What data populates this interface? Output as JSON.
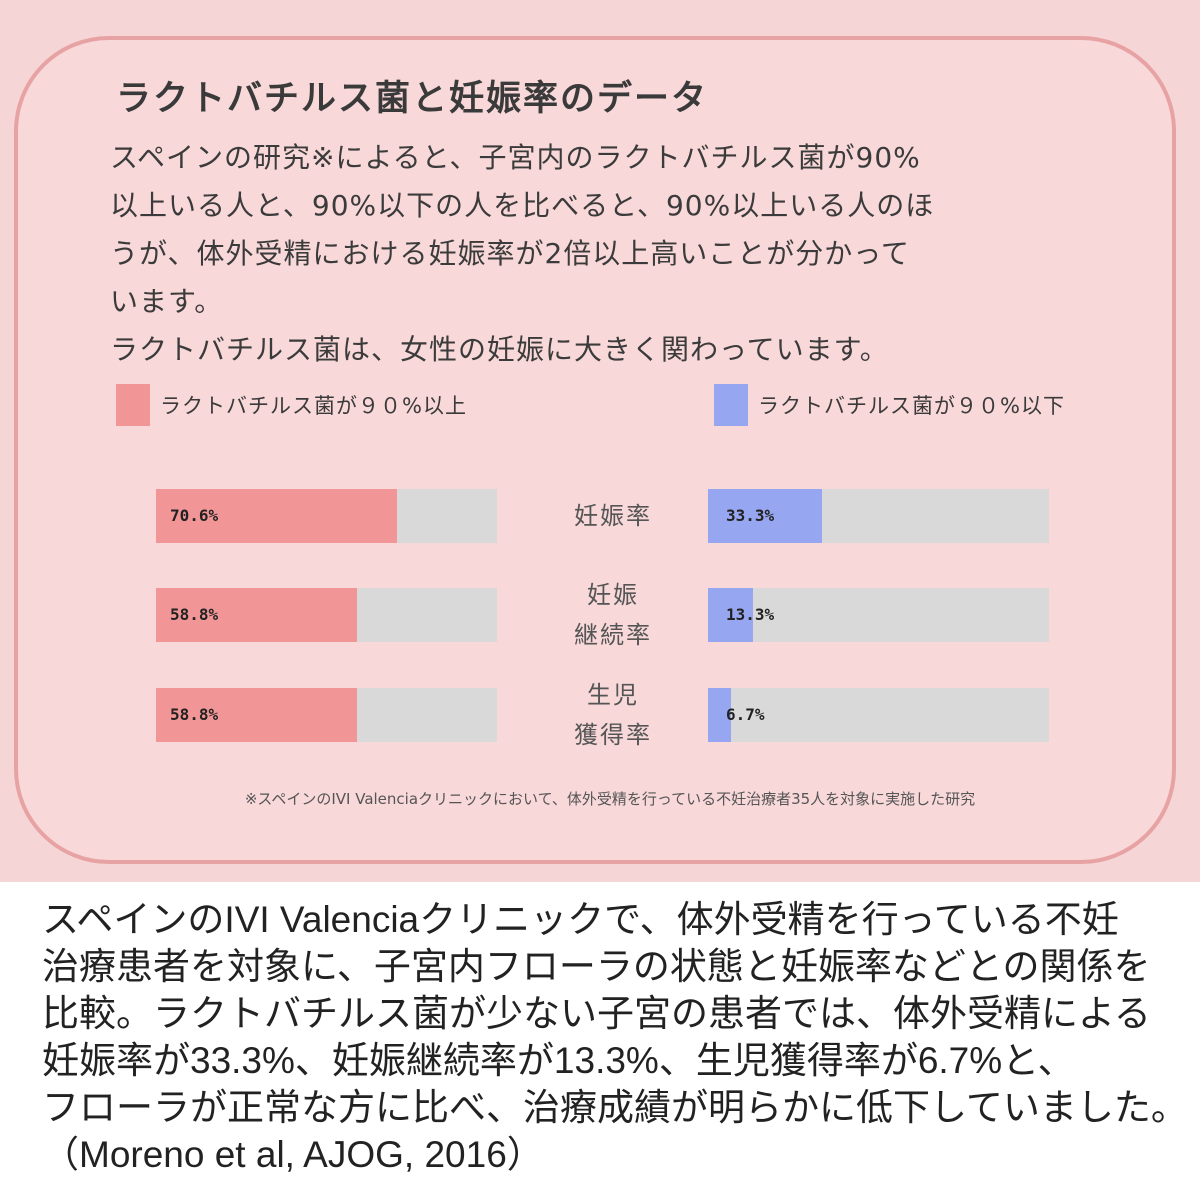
{
  "title": "ラクトバチルス菌と妊娠率のデータ",
  "body_lines": [
    "スペインの研究※によると、子宮内のラクトバチルス菌が90%",
    "以上いる人と、90%以下の人を比べると、90%以上いる人のほ",
    "うが、体外受精における妊娠率が2倍以上高いことが分かって",
    "います。",
    "ラクトバチルス菌は、女性の妊娠に大きく関わっています。"
  ],
  "footnote": "※スペインのIVI Valenciaクリニックにおいて、体外受精を行っている不妊治療者35人を対象に実施した研究",
  "caption_lines": [
    "スペインのIVI Valenciaクリニックで、体外受精を行っている不妊",
    "治療患者を対象に、子宮内フローラの状態と妊娠率などとの関係を",
    "比較。ラクトバチルス菌が少ない子宮の患者では、体外受精による",
    "妊娠率が33.3%、妊娠継続率が13.3%、生児獲得率が6.7%と、",
    "フローラが正常な方に比べ、治療成績が明らかに低下していました。",
    "（Moreno et al, AJOG, 2016）"
  ],
  "colors": {
    "panel": "#f6d5d6",
    "card_border": "#e7a2a4",
    "high_series": "#f29597",
    "low_series": "#97a6f0",
    "track": "#d9d9d9"
  },
  "chart_data": {
    "type": "bar",
    "orientation": "horizontal",
    "xlim": [
      0,
      100
    ],
    "categories": [
      [
        "妊娠率"
      ],
      [
        "妊娠",
        "継続率"
      ],
      [
        "生児",
        "獲得率"
      ]
    ],
    "series": [
      {
        "name": "ラクトバチルス菌が９０%以上",
        "values": [
          70.6,
          58.8,
          58.8
        ],
        "labels": [
          "70.6%",
          "58.8%",
          "58.8%"
        ],
        "color": "#f29597"
      },
      {
        "name": "ラクトバチルス菌が９０%以下",
        "values": [
          33.3,
          13.3,
          6.7
        ],
        "labels": [
          "33.3%",
          "13.3%",
          "6.7%"
        ],
        "color": "#97a6f0"
      }
    ],
    "legend": "top"
  }
}
